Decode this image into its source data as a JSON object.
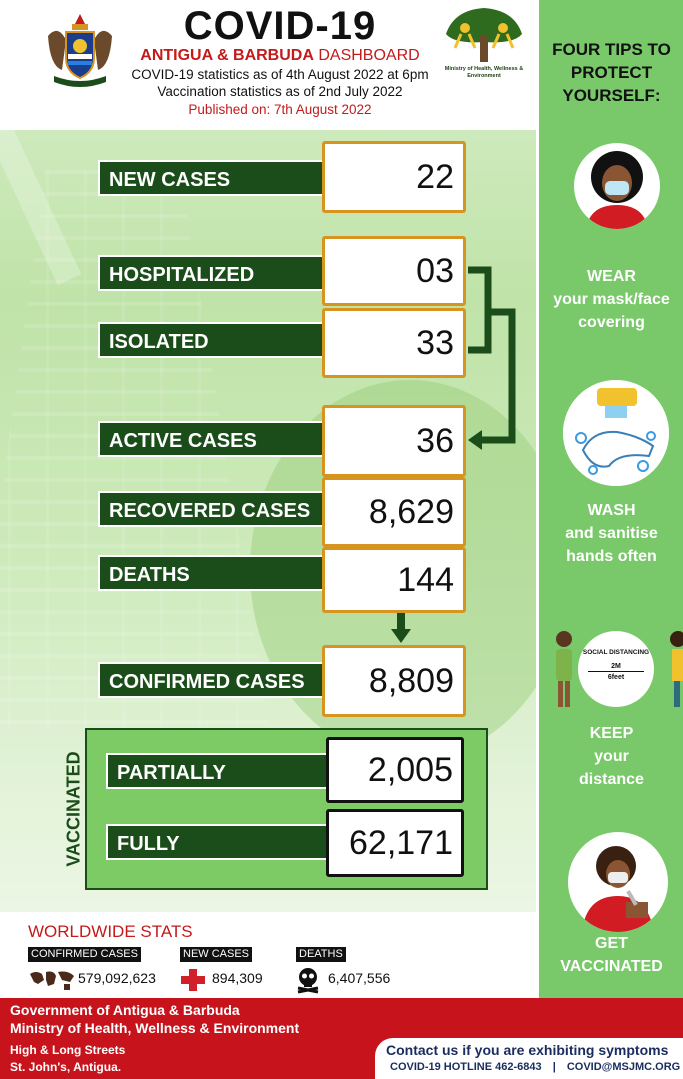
{
  "header": {
    "title": "COVID-19",
    "subtitle_bold": "ANTIGUA & BARBUDA",
    "subtitle_rest": " DASHBOARD",
    "stats_as_of": "COVID-19 statistics as of 4th August 2022 at 6pm",
    "vaccination_as_of": "Vaccination statistics as of 2nd July 2022",
    "published": "Published on: 7th August 2022",
    "ministry_logo_text": "Ministry of Health, Wellness & Environment"
  },
  "stats": {
    "new_cases": {
      "label": "NEW CASES",
      "value": "22"
    },
    "hospitalized": {
      "label": "HOSPITALIZED",
      "value": "03"
    },
    "isolated": {
      "label": "ISOLATED",
      "value": "33"
    },
    "active_cases": {
      "label": "ACTIVE CASES",
      "value": "36"
    },
    "recovered_cases": {
      "label": "RECOVERED CASES",
      "value": "8,629"
    },
    "deaths": {
      "label": "DEATHS",
      "value": "144"
    },
    "confirmed_cases": {
      "label": "CONFIRMED CASES",
      "value": "8,809"
    }
  },
  "vaccinated": {
    "section_label": "VACCINATED",
    "partially": {
      "label": "PARTIALLY",
      "value": "2,005"
    },
    "fully": {
      "label": "FULLY",
      "value": "62,171"
    }
  },
  "worldwide": {
    "title": "WORLDWIDE STATS",
    "confirmed": {
      "label": "CONFIRMED CASES",
      "value": "579,092,623"
    },
    "new_cases": {
      "label": "NEW CASES",
      "value": "894,309"
    },
    "deaths": {
      "label": "DEATHS",
      "value": "6,407,556"
    }
  },
  "tips": {
    "title": "FOUR TIPS TO PROTECT YOURSELF:",
    "items": [
      {
        "line1": "WEAR",
        "line2": "your mask/face",
        "line3": "covering",
        "icon": "face-mask-icon"
      },
      {
        "line1": "WASH",
        "line2": "and sanitise",
        "line3": "hands often",
        "icon": "hand-wash-icon"
      },
      {
        "line1": "KEEP",
        "line2": "your",
        "line3": "distance",
        "icon": "social-distance-icon"
      },
      {
        "line1": "GET",
        "line2": "VACCINATED",
        "line3": "",
        "icon": "vaccination-icon"
      }
    ],
    "distancing_sign": {
      "title": "SOCIAL DISTANCING",
      "meters": "2M",
      "feet": "6feet"
    }
  },
  "footer": {
    "gov_line1": "Government of Antigua & Barbuda",
    "gov_line2": "Ministry of Health, Wellness & Environment",
    "address_line1": "High & Long Streets",
    "address_line2": "St. John's, Antigua.",
    "contact_heading": "Contact us if you are exhibiting symptoms",
    "hotline": "COVID-19 HOTLINE 462-6843",
    "email": "COVID@MSJMC.ORG"
  },
  "colors": {
    "dark_green": "#1b4d1a",
    "light_green": "#79c86a",
    "gold_border": "#d79421",
    "red": "#c41a1a"
  }
}
